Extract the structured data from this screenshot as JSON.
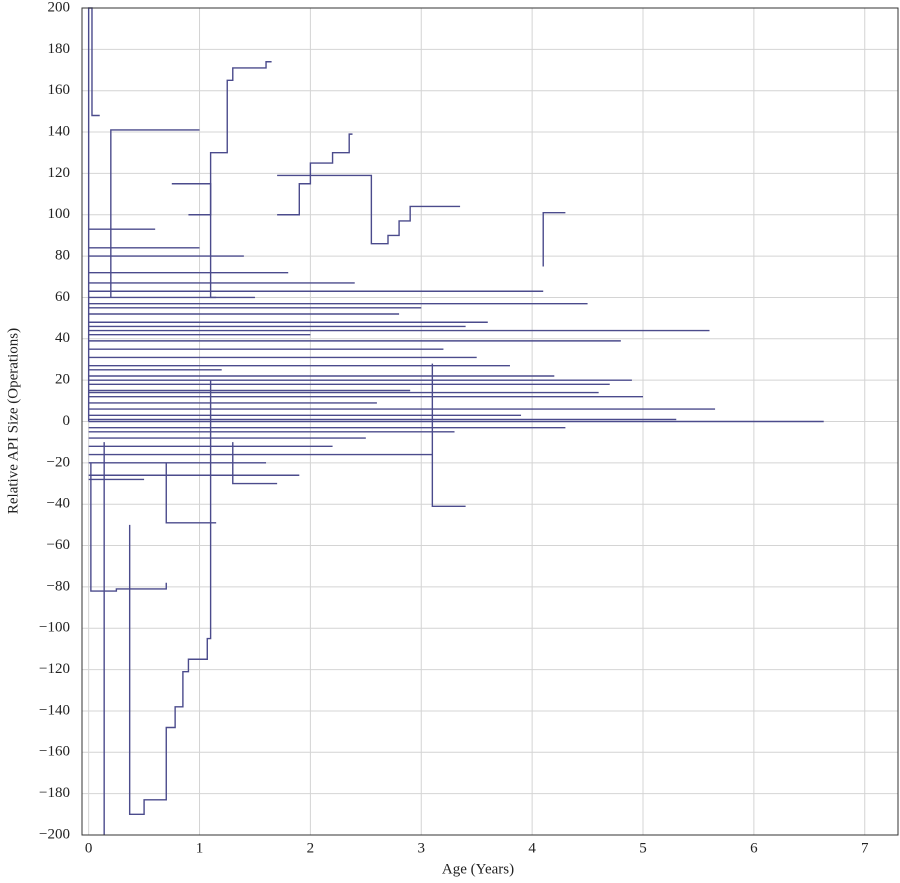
{
  "chart_data": {
    "type": "line",
    "step": true,
    "color": "#4b4b8c",
    "grid": true,
    "xlabel": "Age (Years)",
    "ylabel": "Relative API Size (Operations)",
    "xlim": [
      -0.06,
      7.3
    ],
    "ylim": [
      -200,
      200
    ],
    "xticks": [
      0,
      1,
      2,
      3,
      4,
      5,
      6,
      7
    ],
    "yticks": [
      {
        "value": -200,
        "label": "−200"
      },
      {
        "value": -180,
        "label": "−180"
      },
      {
        "value": -160,
        "label": "−160"
      },
      {
        "value": -140,
        "label": "−140"
      },
      {
        "value": -120,
        "label": "−120"
      },
      {
        "value": -100,
        "label": "−100"
      },
      {
        "value": -80,
        "label": "−80"
      },
      {
        "value": -60,
        "label": "−60"
      },
      {
        "value": -40,
        "label": "−40"
      },
      {
        "value": -20,
        "label": "−20"
      },
      0,
      20,
      40,
      60,
      80,
      100,
      120,
      140,
      160,
      180,
      200
    ],
    "series": [
      {
        "x": [
          0,
          6.63
        ],
        "values": [
          0,
          0
        ]
      },
      {
        "x": [
          0,
          5.65
        ],
        "values": [
          6,
          6
        ]
      },
      {
        "x": [
          0,
          5.6
        ],
        "values": [
          44,
          44
        ]
      },
      {
        "x": [
          0,
          5.0
        ],
        "values": [
          12,
          12
        ]
      },
      {
        "x": [
          0,
          4.7
        ],
        "values": [
          18,
          18
        ]
      },
      {
        "x": [
          0,
          4.2
        ],
        "values": [
          22,
          22
        ]
      },
      {
        "x": [
          0,
          3.8
        ],
        "values": [
          27,
          27
        ]
      },
      {
        "x": [
          0,
          3.5
        ],
        "values": [
          31,
          31
        ]
      },
      {
        "x": [
          0,
          4.8
        ],
        "values": [
          39,
          39
        ]
      },
      {
        "x": [
          0,
          3.2
        ],
        "values": [
          35,
          35
        ]
      },
      {
        "x": [
          0,
          2.9
        ],
        "values": [
          15,
          15
        ]
      },
      {
        "x": [
          0,
          3.9
        ],
        "values": [
          3,
          3
        ]
      },
      {
        "x": [
          0,
          4.3
        ],
        "values": [
          -3,
          -3
        ]
      },
      {
        "x": [
          0,
          5.3
        ],
        "values": [
          1,
          1
        ]
      },
      {
        "x": [
          0,
          2.5
        ],
        "values": [
          -8,
          -8
        ]
      },
      {
        "x": [
          0,
          1.6
        ],
        "values": [
          -20,
          -20
        ]
      },
      {
        "x": [
          0,
          2.2
        ],
        "values": [
          -12,
          -12
        ]
      },
      {
        "x": [
          0,
          3.6
        ],
        "values": [
          48,
          48
        ]
      },
      {
        "x": [
          0,
          2.8
        ],
        "values": [
          52,
          52
        ]
      },
      {
        "x": [
          0,
          4.5
        ],
        "values": [
          57,
          57
        ]
      },
      {
        "x": [
          0,
          2.4
        ],
        "values": [
          67,
          67
        ]
      },
      {
        "x": [
          0,
          1.8
        ],
        "values": [
          72,
          72
        ]
      },
      {
        "x": [
          0,
          3.0
        ],
        "values": [
          55,
          55
        ]
      },
      {
        "x": [
          0,
          2.0
        ],
        "values": [
          42,
          42
        ]
      },
      {
        "x": [
          0,
          1.5
        ],
        "values": [
          60,
          60
        ]
      },
      {
        "x": [
          0,
          1.2
        ],
        "values": [
          25,
          25
        ]
      },
      {
        "x": [
          0,
          2.6
        ],
        "values": [
          9,
          9
        ]
      },
      {
        "x": [
          0,
          4.9
        ],
        "values": [
          20,
          20
        ]
      },
      {
        "x": [
          0,
          3.3
        ],
        "values": [
          -5,
          -5
        ]
      },
      {
        "x": [
          0,
          1.0
        ],
        "values": [
          84,
          84
        ]
      },
      {
        "x": [
          0,
          1.4
        ],
        "values": [
          80,
          80
        ]
      },
      {
        "x": [
          0,
          0.6
        ],
        "values": [
          93,
          93
        ]
      },
      {
        "x": [
          0,
          3.4
        ],
        "values": [
          46,
          46
        ]
      },
      {
        "x": [
          0,
          4.6
        ],
        "values": [
          14,
          14
        ]
      },
      {
        "x": [
          0,
          1.9
        ],
        "values": [
          -26,
          -26
        ]
      },
      {
        "x": [
          0,
          0.5
        ],
        "values": [
          -28,
          -28
        ]
      },
      {
        "x": [
          0,
          4.1
        ],
        "values": [
          63,
          63
        ]
      },
      {
        "x": [
          0,
          3.1
        ],
        "values": [
          -16,
          -16
        ]
      },
      {
        "x": [
          0,
          0,
          0.03,
          0.03,
          0.1
        ],
        "values": [
          0,
          200,
          200,
          148,
          148
        ]
      },
      {
        "x": [
          0.9,
          1.1,
          1.1,
          1.25,
          1.25,
          1.3,
          1.3,
          1.6,
          1.6,
          1.65
        ],
        "values": [
          100,
          100,
          130,
          130,
          165,
          165,
          171,
          171,
          174,
          174
        ]
      },
      {
        "x": [
          0.2,
          0.2,
          1.0
        ],
        "values": [
          60,
          141,
          141
        ]
      },
      {
        "x": [
          1.7,
          1.9,
          1.9,
          2.0,
          2.0,
          2.2,
          2.2,
          2.35,
          2.35,
          2.38
        ],
        "values": [
          100,
          100,
          115,
          115,
          125,
          125,
          130,
          130,
          139,
          139
        ]
      },
      {
        "x": [
          1.7,
          2.55,
          2.55,
          2.7,
          2.7,
          2.8,
          2.8,
          2.9,
          2.9,
          3.35
        ],
        "values": [
          119,
          119,
          86,
          86,
          90,
          90,
          97,
          97,
          104,
          104
        ]
      },
      {
        "x": [
          0.75,
          1.1,
          1.1,
          1.15
        ],
        "values": [
          115,
          115,
          60,
          60
        ]
      },
      {
        "x": [
          4.1,
          4.1,
          4.3
        ],
        "values": [
          75,
          101,
          101
        ]
      },
      {
        "x": [
          3.1,
          3.1,
          3.4
        ],
        "values": [
          28,
          -41,
          -41
        ]
      },
      {
        "x": [
          0.02,
          0.02,
          0.25,
          0.25,
          0.7,
          0.7
        ],
        "values": [
          -20,
          -82,
          -82,
          -81,
          -81,
          -78
        ]
      },
      {
        "x": [
          0.37,
          0.37,
          0.5,
          0.5,
          0.7,
          0.7,
          0.78,
          0.78,
          0.85,
          0.85,
          0.9,
          0.9,
          1.07,
          1.07,
          1.1,
          1.1
        ],
        "values": [
          -50,
          -190,
          -190,
          -183,
          -183,
          -148,
          -148,
          -138,
          -138,
          -121,
          -121,
          -115,
          -115,
          -105,
          -105,
          20
        ]
      },
      {
        "x": [
          0.14,
          0.14
        ],
        "values": [
          -10,
          -200
        ]
      },
      {
        "x": [
          0.7,
          0.7,
          1.15
        ],
        "values": [
          -20,
          -49,
          -49
        ]
      },
      {
        "x": [
          1.3,
          1.3,
          1.7
        ],
        "values": [
          -10,
          -30,
          -30
        ]
      }
    ]
  }
}
